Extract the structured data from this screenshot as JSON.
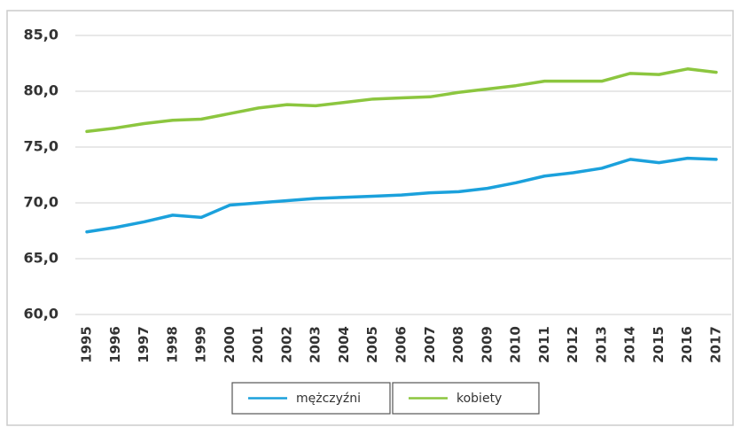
{
  "chart_data": {
    "type": "line",
    "x": [
      "1995",
      "1996",
      "1997",
      "1998",
      "1999",
      "2000",
      "2001",
      "2002",
      "2003",
      "2004",
      "2005",
      "2006",
      "2007",
      "2008",
      "2009",
      "2010",
      "2011",
      "2012",
      "2013",
      "2014",
      "2015",
      "2016",
      "2017"
    ],
    "series": [
      {
        "name": "mężczyźni",
        "color": "#1ba1dc",
        "values": [
          67.4,
          67.8,
          68.3,
          68.9,
          68.7,
          69.8,
          70.0,
          70.2,
          70.4,
          70.5,
          70.6,
          70.7,
          70.9,
          71.0,
          71.3,
          71.8,
          72.4,
          72.7,
          73.1,
          73.9,
          73.6,
          74.0,
          73.9
        ]
      },
      {
        "name": "kobiety",
        "color": "#8cc63f",
        "values": [
          76.4,
          76.7,
          77.1,
          77.4,
          77.5,
          78.0,
          78.5,
          78.8,
          78.7,
          79.0,
          79.3,
          79.4,
          79.5,
          79.9,
          80.2,
          80.5,
          80.9,
          80.9,
          80.9,
          81.6,
          81.5,
          82.0,
          81.7
        ]
      }
    ],
    "ylim": [
      60,
      85
    ],
    "yticks": [
      {
        "value": 60,
        "label": "60,0"
      },
      {
        "value": 65,
        "label": "65,0"
      },
      {
        "value": 70,
        "label": "70,0"
      },
      {
        "value": 75,
        "label": "75,0"
      },
      {
        "value": 80,
        "label": "80,0"
      },
      {
        "value": 85,
        "label": "85,0"
      }
    ],
    "grid": true,
    "legend": "bottom"
  }
}
